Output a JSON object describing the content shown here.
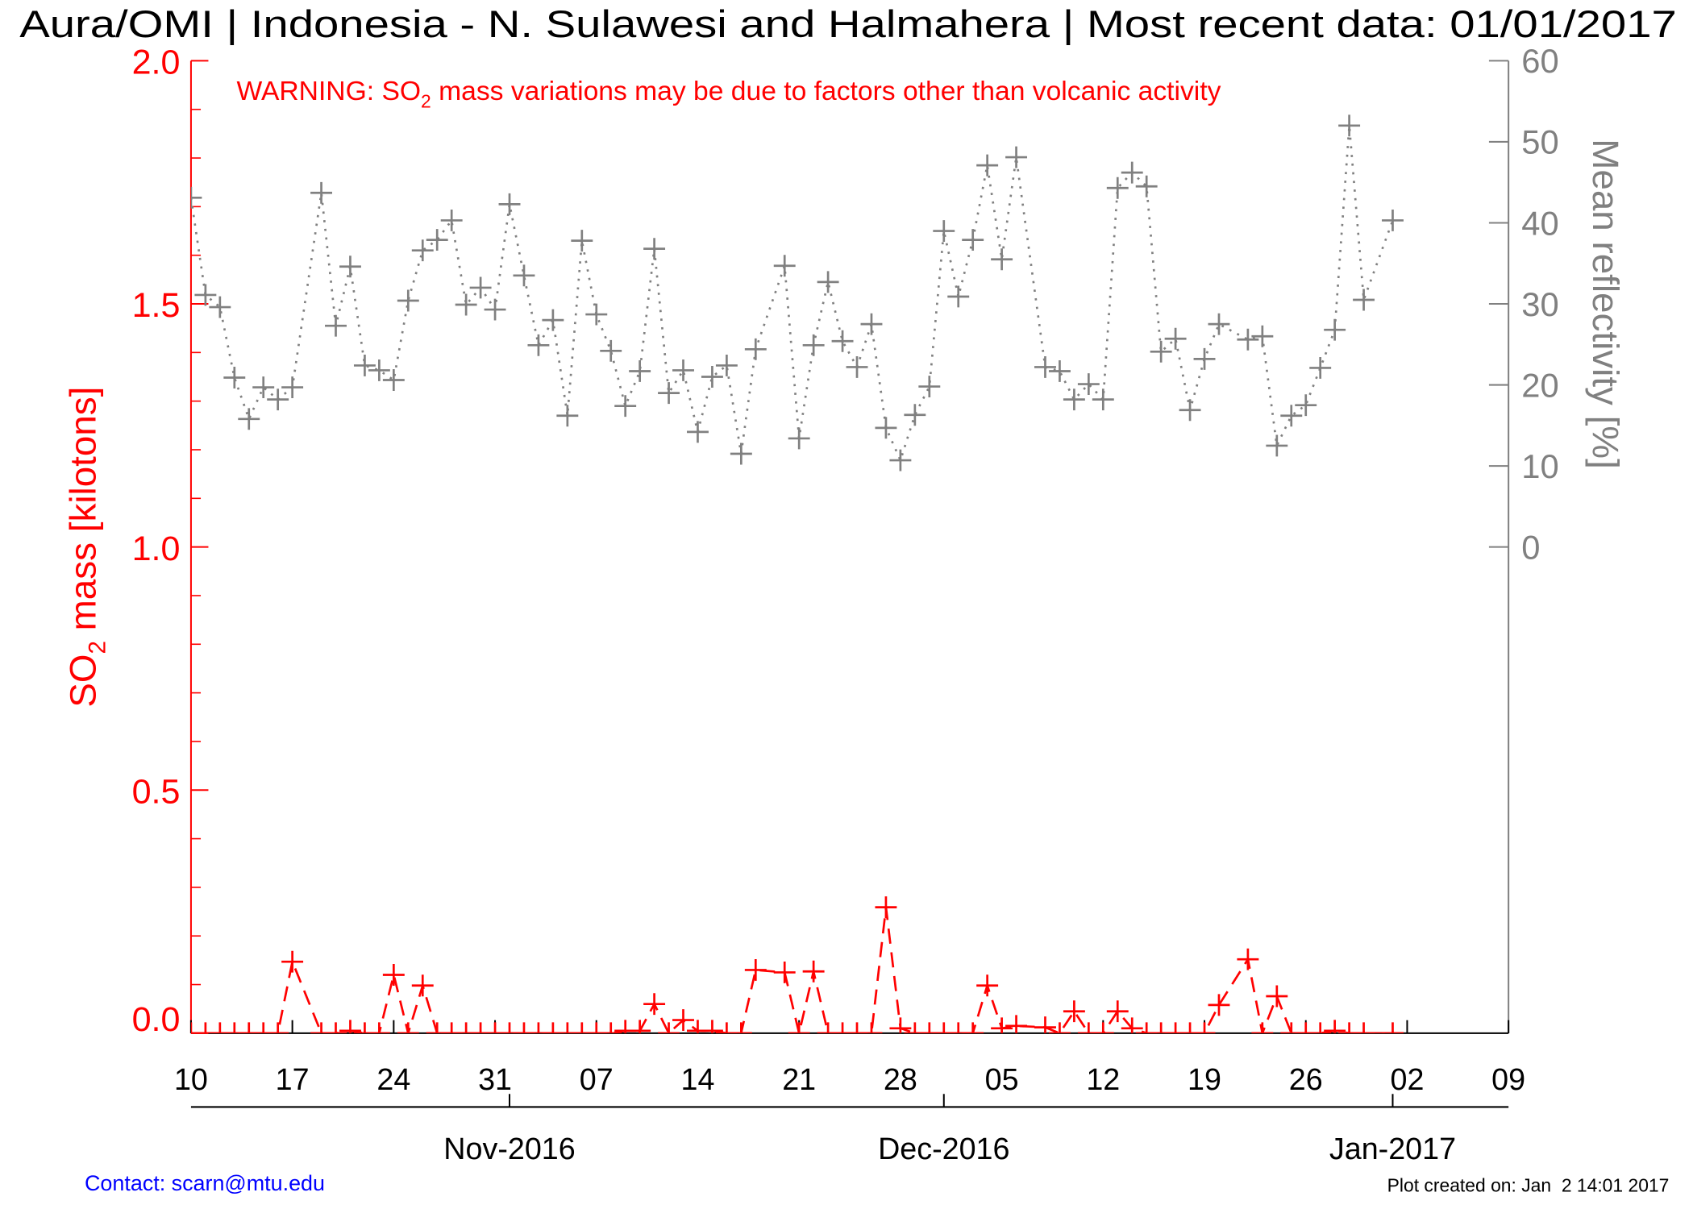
{
  "chart_data": {
    "type": "line",
    "title": "Aura/OMI | Indonesia - N. Sulawesi and Halmahera | Most recent data: 01/01/2017",
    "warning": {
      "prefix": "WARNING: SO",
      "subscript": "2",
      "suffix": " mass variations may be due to factors other than volcanic activity"
    },
    "ylabel": {
      "prefix": "SO",
      "subscript": "2",
      "suffix": " mass [kilotons]"
    },
    "y2label": "Mean reflectivity [%]",
    "x": [
      "2016-10-10",
      "2016-10-11",
      "2016-10-12",
      "2016-10-13",
      "2016-10-14",
      "2016-10-15",
      "2016-10-16",
      "2016-10-17",
      "2016-10-19",
      "2016-10-20",
      "2016-10-21",
      "2016-10-22",
      "2016-10-23",
      "2016-10-24",
      "2016-10-25",
      "2016-10-26",
      "2016-10-27",
      "2016-10-28",
      "2016-10-29",
      "2016-10-30",
      "2016-10-31",
      "2016-11-01",
      "2016-11-02",
      "2016-11-03",
      "2016-11-04",
      "2016-11-05",
      "2016-11-06",
      "2016-11-07",
      "2016-11-08",
      "2016-11-09",
      "2016-11-10",
      "2016-11-11",
      "2016-11-12",
      "2016-11-13",
      "2016-11-14",
      "2016-11-15",
      "2016-11-16",
      "2016-11-17",
      "2016-11-18",
      "2016-11-20",
      "2016-11-21",
      "2016-11-22",
      "2016-11-23",
      "2016-11-24",
      "2016-11-25",
      "2016-11-26",
      "2016-11-27",
      "2016-11-28",
      "2016-11-29",
      "2016-11-30",
      "2016-12-01",
      "2016-12-02",
      "2016-12-03",
      "2016-12-04",
      "2016-12-05",
      "2016-12-06",
      "2016-12-08",
      "2016-12-09",
      "2016-12-10",
      "2016-12-11",
      "2016-12-12",
      "2016-12-13",
      "2016-12-14",
      "2016-12-15",
      "2016-12-16",
      "2016-12-17",
      "2016-12-18",
      "2016-12-19",
      "2016-12-20",
      "2016-12-22",
      "2016-12-23",
      "2016-12-24",
      "2016-12-25",
      "2016-12-26",
      "2016-12-27",
      "2016-12-28",
      "2016-12-29",
      "2016-12-30",
      "2017-01-01"
    ],
    "series": [
      {
        "color": "#ff0000",
        "dash": "dashed",
        "marker": "+",
        "values": [
          0,
          0,
          0,
          0,
          0,
          0,
          0,
          0.147,
          0,
          0,
          0.005,
          0,
          0,
          0.12,
          0,
          0.098,
          0,
          0,
          0,
          0,
          0,
          0,
          0,
          0,
          0,
          0,
          0,
          0,
          0,
          0.005,
          0.005,
          0.06,
          0,
          0.027,
          0.005,
          0.005,
          0,
          0,
          0.13,
          0.125,
          0,
          0.127,
          0,
          0,
          0,
          0,
          0.259,
          0.01,
          0,
          0,
          0,
          0,
          0,
          0.098,
          0.01,
          0.015,
          0.012,
          0,
          0.045,
          0,
          0,
          0.045,
          0.01,
          0,
          0,
          0,
          0,
          0,
          0.058,
          0.152,
          0,
          0.076,
          0,
          0,
          0,
          0.005,
          0,
          0,
          0
        ]
      },
      {
        "color": "#808080",
        "dash": "dotted",
        "marker": "+",
        "axis": "y2",
        "values": [
          43.1,
          31.1,
          29.6,
          20.9,
          15.8,
          19.7,
          18.2,
          19.7,
          43.7,
          27.3,
          34.6,
          22.4,
          21.8,
          20.6,
          30.4,
          36.6,
          37.9,
          40.3,
          29.9,
          32,
          29.3,
          42.3,
          33.5,
          24.9,
          28,
          16.2,
          37.8,
          28.7,
          24.2,
          17.4,
          21.7,
          36.8,
          19,
          21.8,
          14.2,
          21,
          22.4,
          11.5,
          24.4,
          34.7,
          13.4,
          24.9,
          32.7,
          25.4,
          22.2,
          27.5,
          14.7,
          10.7,
          16.3,
          19.8,
          39,
          30.9,
          37.9,
          47.1,
          35.5,
          48.1,
          22.2,
          21.7,
          18.2,
          20.1,
          18.2,
          44.3,
          46.2,
          44.5,
          24.1,
          25.7,
          16.9,
          23.2,
          27.5,
          25.6,
          26,
          12.5,
          16.2,
          17.5,
          22.1,
          26.8,
          52,
          30.5,
          40.3
        ]
      }
    ],
    "xlim": [
      "2016-10-10",
      "2017-01-09"
    ],
    "xticks": [
      {
        "value": "2016-10-10",
        "label": "10"
      },
      {
        "value": "2016-10-17",
        "label": "17"
      },
      {
        "value": "2016-10-24",
        "label": "24"
      },
      {
        "value": "2016-10-31",
        "label": "31"
      },
      {
        "value": "2016-11-07",
        "label": "07"
      },
      {
        "value": "2016-11-14",
        "label": "14"
      },
      {
        "value": "2016-11-21",
        "label": "21"
      },
      {
        "value": "2016-11-28",
        "label": "28"
      },
      {
        "value": "2016-12-05",
        "label": "05"
      },
      {
        "value": "2016-12-12",
        "label": "12"
      },
      {
        "value": "2016-12-19",
        "label": "19"
      },
      {
        "value": "2016-12-26",
        "label": "26"
      },
      {
        "value": "2017-01-02",
        "label": "02"
      },
      {
        "value": "2017-01-09",
        "label": "09"
      }
    ],
    "month_ticks": [
      {
        "value": "2016-11-01",
        "label": "Nov-2016"
      },
      {
        "value": "2016-12-01",
        "label": "Dec-2016"
      },
      {
        "value": "2017-01-01",
        "label": "Jan-2017"
      }
    ],
    "ylim": [
      0,
      2
    ],
    "yticks": [
      {
        "value": 0,
        "label": "0.0"
      },
      0.5,
      {
        "value": 1,
        "label": "1.0"
      },
      1.5,
      {
        "value": 2,
        "label": "2.0"
      }
    ],
    "yminorticks": [
      0.1,
      0.2,
      0.3,
      0.4,
      0.6,
      0.7,
      0.8,
      0.9,
      1.1,
      1.2,
      1.3,
      1.4,
      1.6,
      1.7,
      1.8,
      1.9
    ],
    "ycolor": "#ff0000",
    "y2lim": [
      -60,
      60
    ],
    "y2ticks": [
      0,
      10,
      20,
      30,
      40,
      50,
      60
    ],
    "y2color": "#808080"
  },
  "footer": {
    "contact": "Contact: scarn@mtu.edu",
    "created": "Plot created on: Jan  2 14:01 2017"
  }
}
